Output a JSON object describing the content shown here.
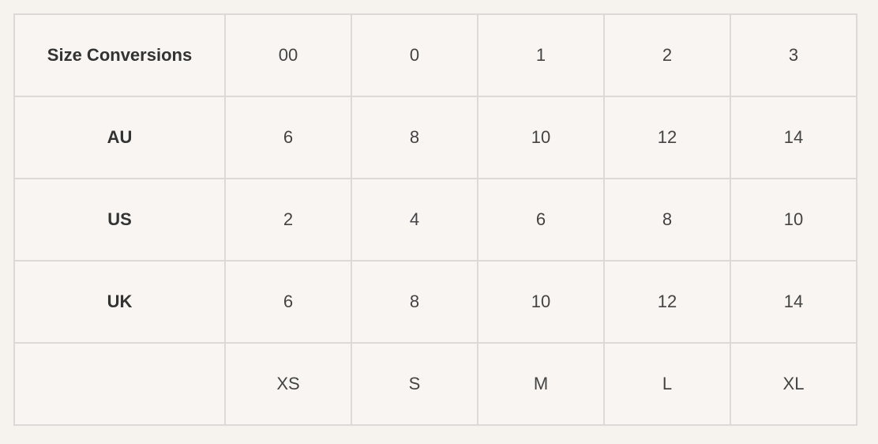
{
  "table": {
    "header": {
      "label": "Size Conversions",
      "cells": [
        "00",
        "0",
        "1",
        "2",
        "3"
      ]
    },
    "rows": [
      {
        "label": "AU",
        "cells": [
          "6",
          "8",
          "10",
          "12",
          "14"
        ]
      },
      {
        "label": "US",
        "cells": [
          "2",
          "4",
          "6",
          "8",
          "10"
        ]
      },
      {
        "label": "UK",
        "cells": [
          "6",
          "8",
          "10",
          "12",
          "14"
        ]
      },
      {
        "label": "",
        "cells": [
          "XS",
          "S",
          "M",
          "L",
          "XL"
        ]
      }
    ]
  }
}
